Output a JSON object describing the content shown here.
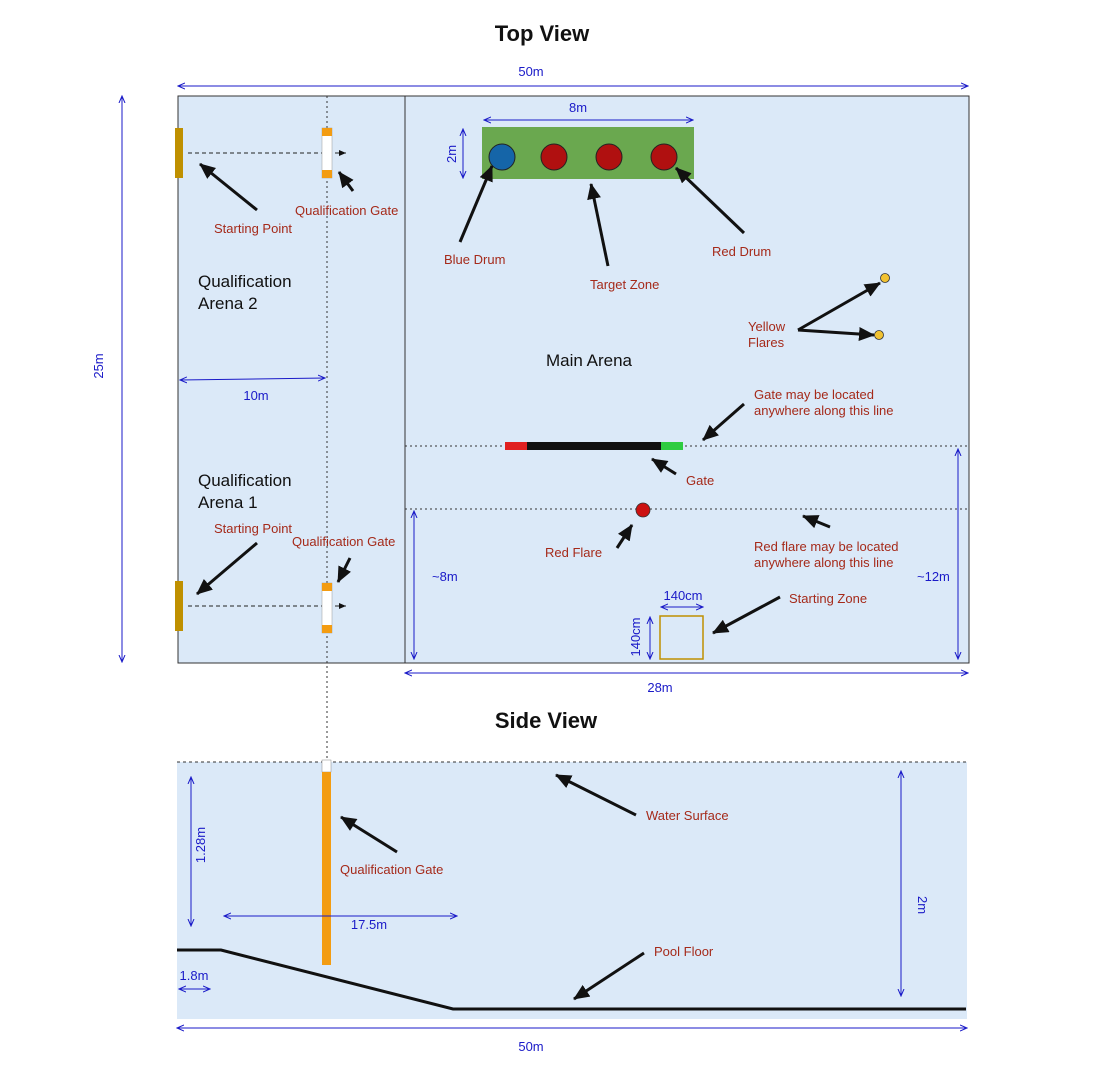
{
  "top_view": {
    "title": "Top View",
    "dims": {
      "width_total": "50m",
      "height_total": "25m",
      "qual_width": "10m",
      "main_width": "28m",
      "drums_width": "8m",
      "drums_height": "2m",
      "flare_line": "~8m",
      "gate_line": "~12m",
      "start_zone_w": "140cm",
      "start_zone_h": "140cm"
    },
    "areas": {
      "qual2_line1": "Qualification",
      "qual2_line2": "Arena 2",
      "qual1_line1": "Qualification",
      "qual1_line2": "Arena 1",
      "main": "Main Arena"
    },
    "labels": {
      "starting_point_top": "Starting Point",
      "qual_gate_top": "Qualification Gate",
      "starting_point_bottom": "Starting Point",
      "qual_gate_bottom": "Qualification Gate",
      "blue_drum": "Blue Drum",
      "target_zone": "Target Zone",
      "red_drum": "Red Drum",
      "yellow_flares_1": "Yellow",
      "yellow_flares_2": "Flares",
      "gate_note_1": "Gate may be located",
      "gate_note_2": "anywhere along this line",
      "gate": "Gate",
      "red_flare": "Red Flare",
      "flare_note_1": "Red flare may be located",
      "flare_note_2": "anywhere along this line",
      "starting_zone": "Starting Zone"
    }
  },
  "side_view": {
    "title": "Side View",
    "dims": {
      "gate_height": "1.28m",
      "shallow_length": "17.5m",
      "shallow_depth": "1.8m",
      "deep_depth": "2m",
      "total_length": "50m"
    },
    "labels": {
      "water_surface": "Water Surface",
      "qual_gate": "Qualification Gate",
      "pool_floor": "Pool Floor"
    }
  },
  "colors": {
    "water": "#dbe9f8",
    "target_zone": "#6aa84f",
    "blue_drum": "#1565a8",
    "red_drum": "#b01010",
    "gate_pole": "#f39c12",
    "start_marker": "#bf9000",
    "yellow_flare": "#f1c232",
    "start_zone_border": "#bf9000",
    "gate_red": "#e02020",
    "gate_green": "#2ecc40"
  }
}
